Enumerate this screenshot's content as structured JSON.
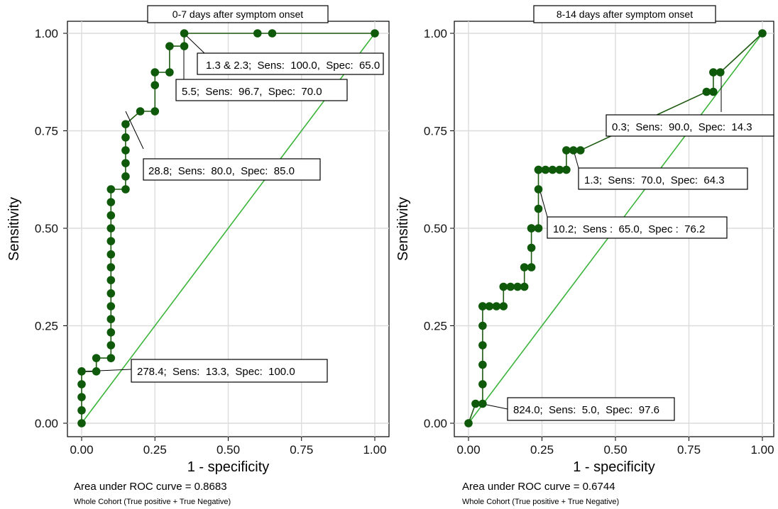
{
  "chart_data": [
    {
      "type": "line",
      "title": "0-7 days after symptom onset",
      "xlabel": "1 - specificity",
      "ylabel": "Sensitivity",
      "xlim": [
        0,
        1
      ],
      "ylim": [
        0,
        1
      ],
      "x_ticks": [
        "0.00",
        "0.25",
        "0.50",
        "0.75",
        "1.00"
      ],
      "y_ticks": [
        "0.00",
        "0.25",
        "0.50",
        "0.75",
        "1.00"
      ],
      "grid": true,
      "colors": {
        "curve": "#1e5a12",
        "point": "#0f5a0a",
        "reference": "#3cb43c"
      },
      "series": [
        {
          "x": [
            0,
            0,
            0,
            0,
            0,
            0.05,
            0.05,
            0.1,
            0.1,
            0.1,
            0.1,
            0.1,
            0.1,
            0.1,
            0.1,
            0.1,
            0.1,
            0.1,
            0.1,
            0.1,
            0.1,
            0.15,
            0.15,
            0.15,
            0.15,
            0.15,
            0.15,
            0.2,
            0.25,
            0.25,
            0.25,
            0.3,
            0.3,
            0.35,
            0.35,
            0.6,
            0.65,
            1.0
          ],
          "y": [
            0,
            0.033,
            0.067,
            0.1,
            0.133,
            0.133,
            0.167,
            0.167,
            0.2,
            0.233,
            0.267,
            0.3,
            0.333,
            0.367,
            0.4,
            0.433,
            0.467,
            0.5,
            0.533,
            0.567,
            0.6,
            0.6,
            0.633,
            0.667,
            0.7,
            0.733,
            0.767,
            0.8,
            0.8,
            0.867,
            0.9,
            0.9,
            0.967,
            0.967,
            1.0,
            1.0,
            1.0,
            1.0
          ]
        }
      ],
      "annotations": [
        {
          "text": "1.3 & 2.3;  Sens:  100.0,  Spec:  65.0",
          "x": 0.35,
          "y": 1.0
        },
        {
          "text": "5.5;  Sens:  96.7,  Spec:  70.0",
          "x": 0.35,
          "y": 0.967
        },
        {
          "text": "28.8;  Sens:  80.0,  Spec:  85.0",
          "x": 0.15,
          "y": 0.8
        },
        {
          "text": "278.4;  Sens:  13.3,  Spec:  100.0",
          "x": 0,
          "y": 0.133
        }
      ],
      "footer_auc": "Area under ROC curve = 0.8683",
      "footer_note": "Whole Cohort (True positive + True Negative)"
    },
    {
      "type": "line",
      "title": "8-14 days after symptom onset",
      "xlabel": "1 - specificity",
      "ylabel": "Sensitivity",
      "xlim": [
        0,
        1
      ],
      "ylim": [
        0,
        1
      ],
      "x_ticks": [
        "0.00",
        "0.25",
        "0.50",
        "0.75",
        "1.00"
      ],
      "y_ticks": [
        "0.00",
        "0.25",
        "0.50",
        "0.75",
        "1.00"
      ],
      "grid": true,
      "colors": {
        "curve": "#1e5a12",
        "point": "#0f5a0a",
        "reference": "#3cb43c"
      },
      "series": [
        {
          "x": [
            0,
            0.024,
            0.048,
            0.048,
            0.048,
            0.048,
            0.048,
            0.048,
            0.048,
            0.071,
            0.095,
            0.119,
            0.119,
            0.143,
            0.167,
            0.19,
            0.19,
            0.214,
            0.214,
            0.214,
            0.214,
            0.238,
            0.238,
            0.238,
            0.238,
            0.238,
            0.262,
            0.286,
            0.31,
            0.333,
            0.333,
            0.357,
            0.381,
            0.81,
            0.833,
            0.833,
            0.857,
            1.0
          ],
          "y": [
            0,
            0.05,
            0.05,
            0.1,
            0.15,
            0.2,
            0.25,
            0.3,
            0.3,
            0.3,
            0.3,
            0.3,
            0.35,
            0.35,
            0.35,
            0.35,
            0.4,
            0.4,
            0.45,
            0.5,
            0.5,
            0.5,
            0.55,
            0.6,
            0.65,
            0.65,
            0.65,
            0.65,
            0.65,
            0.65,
            0.7,
            0.7,
            0.7,
            0.85,
            0.85,
            0.9,
            0.9,
            1.0
          ]
        }
      ],
      "annotations": [
        {
          "text": "0.3;  Sens:  90.0,  Spec:  14.3",
          "x": 0.857,
          "y": 0.9
        },
        {
          "text": "1.3;  Sens:  70.0,  Spec:  64.3",
          "x": 0.357,
          "y": 0.7
        },
        {
          "text": "10.2;  Sens :  65.0,  Spec :  76.2",
          "x": 0.238,
          "y": 0.65
        },
        {
          "text": "824.0;  Sens:  5.0,  Spec:  97.6",
          "x": 0.024,
          "y": 0.05
        }
      ],
      "footer_auc": "Area under ROC curve = 0.6744",
      "footer_note": "Whole Cohort (True positive + True Negative)"
    }
  ]
}
